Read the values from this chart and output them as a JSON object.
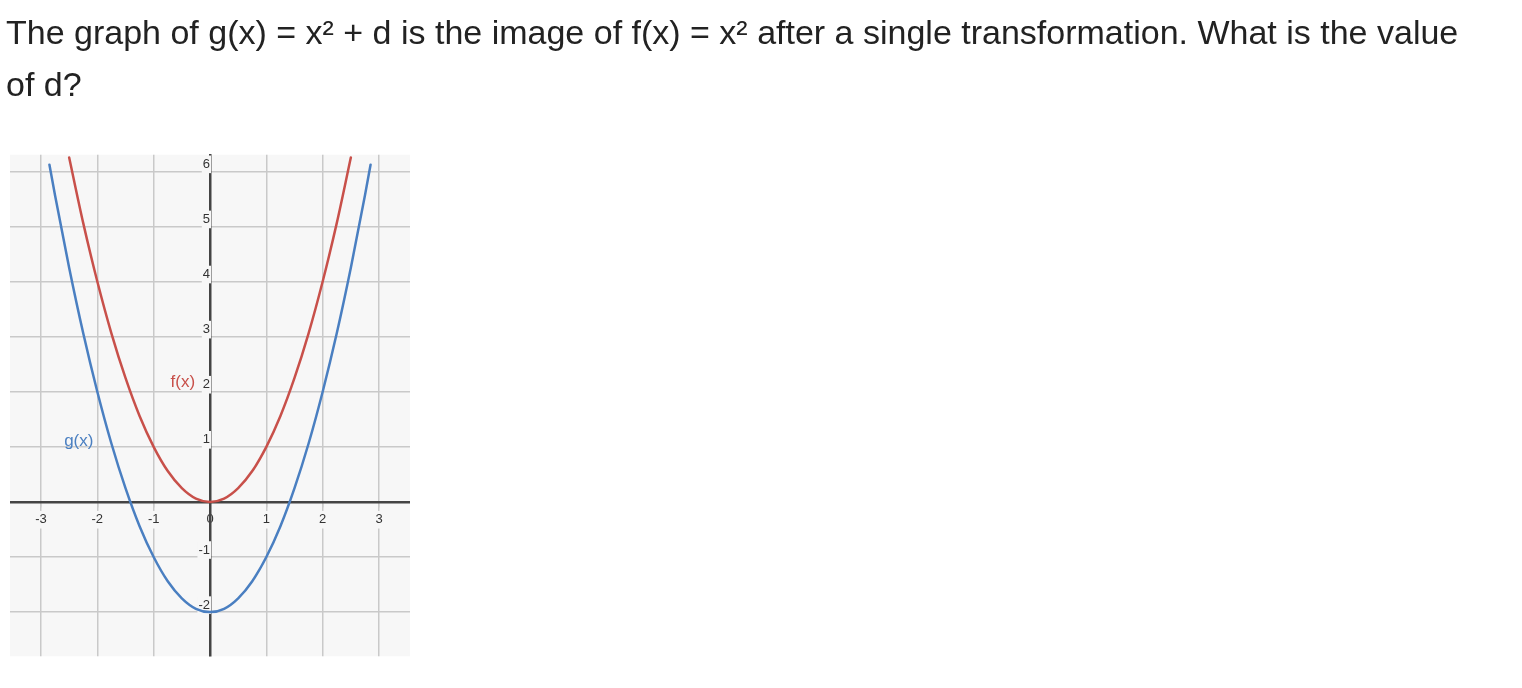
{
  "chart_data": {
    "type": "line",
    "title": "The graph of g(x) = x² + d is the image of f(x) = x² after a single transformation.  What is the value of d?",
    "xlim": [
      -3.55,
      3.55
    ],
    "ylim": [
      -2.8,
      6.3
    ],
    "xticks": [
      -3,
      -2,
      -1,
      0,
      1,
      2,
      3
    ],
    "yticks": [
      -2,
      -1,
      1,
      2,
      3,
      4,
      5,
      6
    ],
    "grid": true,
    "legend": false,
    "marker": "none",
    "line_style": "solid",
    "series": [
      {
        "name": "f(x)",
        "color": "#c8504a",
        "x": [
          -2.5,
          -2.25,
          -2,
          -1.75,
          -1.5,
          -1.25,
          -1,
          -0.75,
          -0.5,
          -0.25,
          0,
          0.25,
          0.5,
          0.75,
          1,
          1.25,
          1.5,
          1.75,
          2,
          2.25,
          2.5
        ],
        "values": [
          6.25,
          5.06,
          4,
          3.06,
          2.25,
          1.56,
          1,
          0.56,
          0.25,
          0.06,
          0,
          0.06,
          0.25,
          0.56,
          1,
          1.56,
          2.25,
          3.06,
          4,
          5.06,
          6.25
        ]
      },
      {
        "name": "g(x)",
        "color": "#4a7fc1",
        "x": [
          -2.85,
          -2.75,
          -2.5,
          -2.25,
          -2,
          -1.75,
          -1.5,
          -1.25,
          -1,
          -0.75,
          -0.5,
          -0.25,
          0,
          0.25,
          0.5,
          0.75,
          1,
          1.25,
          1.5,
          1.75,
          2,
          2.25,
          2.5,
          2.75,
          2.85
        ],
        "values": [
          6.12,
          5.56,
          4.25,
          3.06,
          2,
          1.06,
          0.25,
          -0.44,
          -1,
          -1.44,
          -1.75,
          -1.94,
          -2,
          -1.94,
          -1.75,
          -1.44,
          -1,
          -0.44,
          0.25,
          1.06,
          2,
          3.06,
          4.25,
          5.56,
          6.12
        ]
      }
    ]
  }
}
